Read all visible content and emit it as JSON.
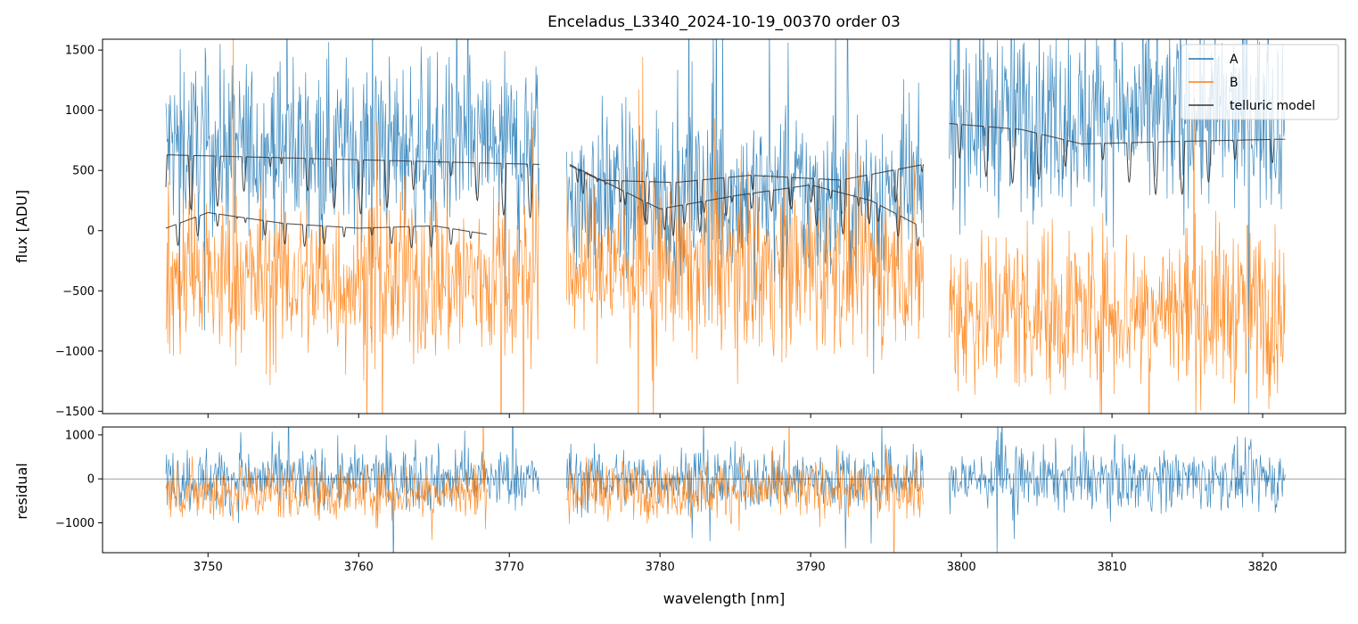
{
  "chart_data": [
    {
      "type": "line",
      "title": "Enceladus_L3340_2024-10-19_00370  order 03",
      "xlabel": "",
      "ylabel": "flux [ADU]",
      "xlim": [
        3743.0,
        3825.5
      ],
      "ylim": [
        -1520,
        1590
      ],
      "xticks": [
        3750,
        3760,
        3770,
        3780,
        3790,
        3800,
        3810,
        3820
      ],
      "yticks": [
        -1500,
        -1000,
        -500,
        0,
        500,
        1000,
        1500
      ],
      "ytick_labels": [
        "−1500",
        "−1000",
        "−500",
        "0",
        "500",
        "1000",
        "1500"
      ],
      "legend": {
        "position": "top-right",
        "entries": [
          "A",
          "B",
          "telluric model"
        ]
      },
      "segments": [
        {
          "x_range": [
            3747.2,
            3772.0
          ],
          "A_mean": 700,
          "A_spread": 650,
          "B_mean": -400,
          "B_spread": 650
        },
        {
          "x_range": [
            3773.8,
            3797.5
          ],
          "A_mean": 300,
          "A_spread": 650,
          "B_mean": -300,
          "B_spread": 650
        },
        {
          "x_range": [
            3799.2,
            3821.5
          ],
          "A_mean": 950,
          "A_spread": 700,
          "B_mean": -650,
          "B_spread": 650
        }
      ],
      "series": [
        {
          "name": "A",
          "color": "#1f77b4",
          "style": "dense noisy spectrum"
        },
        {
          "name": "B",
          "color": "#ff7f0e",
          "style": "dense noisy spectrum"
        },
        {
          "name": "telluric model",
          "color": "#333333",
          "upper_envelope": [
            {
              "x": 3747.2,
              "y": 630
            },
            {
              "x": 3772.0,
              "y": 550
            },
            {
              "x": 3774.0,
              "y": 540
            },
            {
              "x": 3776.0,
              "y": 420
            },
            {
              "x": 3781.0,
              "y": 400
            },
            {
              "x": 3786.0,
              "y": 460
            },
            {
              "x": 3792.0,
              "y": 420
            },
            {
              "x": 3797.5,
              "y": 550
            },
            {
              "x": 3799.2,
              "y": 890
            },
            {
              "x": 3804.0,
              "y": 840
            },
            {
              "x": 3808.0,
              "y": 720
            },
            {
              "x": 3814.0,
              "y": 740
            },
            {
              "x": 3821.5,
              "y": 760
            }
          ],
          "lower_curve": [
            {
              "x": 3747.2,
              "y": 20
            },
            {
              "x": 3750.0,
              "y": 150
            },
            {
              "x": 3755.0,
              "y": 60
            },
            {
              "x": 3760.0,
              "y": 20
            },
            {
              "x": 3765.0,
              "y": 40
            },
            {
              "x": 3768.5,
              "y": -30
            },
            {
              "x": 3774.0,
              "y": 550
            },
            {
              "x": 3780.0,
              "y": 180
            },
            {
              "x": 3785.0,
              "y": 290
            },
            {
              "x": 3790.0,
              "y": 380
            },
            {
              "x": 3794.0,
              "y": 250
            },
            {
              "x": 3797.2,
              "y": 40
            }
          ]
        }
      ]
    },
    {
      "type": "line",
      "title": "",
      "xlabel": "wavelength [nm]",
      "ylabel": "residual",
      "xlim": [
        3743.0,
        3825.5
      ],
      "ylim": [
        -1680,
        1180
      ],
      "xticks": [
        3750,
        3760,
        3770,
        3780,
        3790,
        3800,
        3810,
        3820
      ],
      "yticks": [
        -1000,
        0,
        1000
      ],
      "ytick_labels": [
        "−1000",
        "0",
        "1000"
      ],
      "zero_line": 0,
      "segments": [
        {
          "x_range": [
            3747.2,
            3772.0
          ],
          "A_mean": 0,
          "A_spread": 650,
          "B_mean": -300,
          "B_spread": 600,
          "B_x_end": 3768.6
        },
        {
          "x_range": [
            3773.8,
            3797.5
          ],
          "A_mean": 0,
          "A_spread": 650,
          "B_mean": -250,
          "B_spread": 600,
          "B_x_end": 3797.5
        },
        {
          "x_range": [
            3799.2,
            3821.5
          ],
          "A_mean": 0,
          "A_spread": 650,
          "B_mean": null,
          "B_spread": 0,
          "B_x_end": null
        }
      ],
      "series": [
        {
          "name": "A",
          "color": "#1f77b4"
        },
        {
          "name": "B",
          "color": "#ff7f0e"
        }
      ]
    }
  ]
}
